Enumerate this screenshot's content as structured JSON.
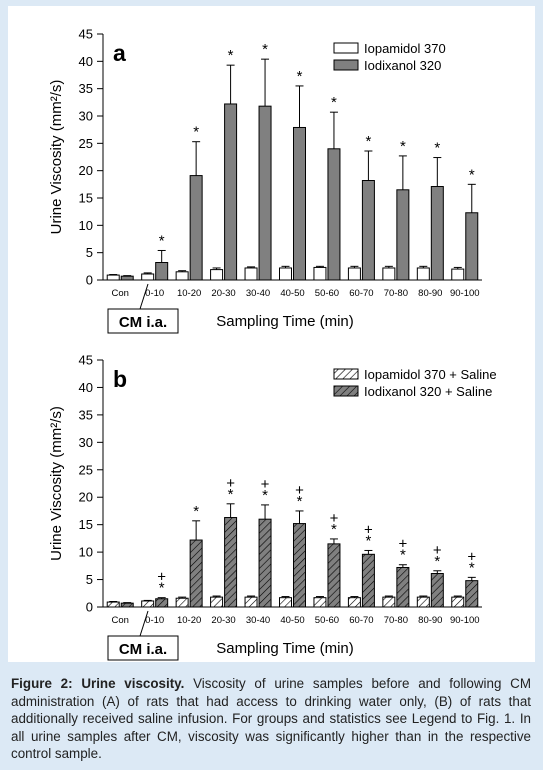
{
  "chart_data": [
    {
      "type": "bar",
      "panel": "a",
      "ylabel": "Urine Viscosity (mm²/s)",
      "xlabel": "Sampling Time (min)",
      "note": "CM i.a.",
      "categories": [
        "Con",
        "0-10",
        "10-20",
        "20-30",
        "30-40",
        "40-50",
        "50-60",
        "60-70",
        "70-80",
        "80-90",
        "90-100"
      ],
      "series": [
        {
          "name": "Iopamidol 370",
          "color": "#ffffff",
          "hatch": false,
          "values": [
            0.9,
            1.1,
            1.5,
            1.9,
            2.2,
            2.2,
            2.3,
            2.2,
            2.2,
            2.2,
            2.0
          ],
          "errors": [
            0.1,
            0.2,
            0.2,
            0.3,
            0.2,
            0.3,
            0.2,
            0.3,
            0.3,
            0.3,
            0.3
          ]
        },
        {
          "name": "Iodixanol 320",
          "color": "#808080",
          "hatch": false,
          "values": [
            0.7,
            3.2,
            19.1,
            32.2,
            31.8,
            27.9,
            24.0,
            18.2,
            16.5,
            17.1,
            12.3
          ],
          "errors": [
            0.1,
            2.2,
            6.2,
            7.1,
            8.6,
            7.6,
            6.7,
            5.4,
            6.2,
            5.3,
            5.2
          ]
        }
      ],
      "annotations": [
        null,
        [
          "*"
        ],
        [
          "*"
        ],
        [
          "*"
        ],
        [
          "*"
        ],
        [
          "*"
        ],
        [
          "*"
        ],
        [
          "*"
        ],
        [
          "*"
        ],
        [
          "*"
        ],
        [
          "*"
        ]
      ],
      "ylim": [
        0,
        45
      ],
      "yticks": [
        0,
        5,
        10,
        15,
        20,
        25,
        30,
        35,
        40,
        45
      ],
      "legend": "upper right"
    },
    {
      "type": "bar",
      "panel": "b",
      "ylabel": "Urine Viscosity (mm²/s)",
      "xlabel": "Sampling Time (min)",
      "note": "CM i.a.",
      "categories": [
        "Con",
        "0-10",
        "10-20",
        "20-30",
        "30-40",
        "40-50",
        "50-60",
        "60-70",
        "70-80",
        "80-90",
        "90-100"
      ],
      "series": [
        {
          "name": "Iopamidol 370 + Saline",
          "color": "#ffffff",
          "hatch": true,
          "values": [
            0.9,
            1.1,
            1.6,
            1.8,
            1.8,
            1.7,
            1.7,
            1.7,
            1.8,
            1.8,
            1.8
          ],
          "errors": [
            0.1,
            0.1,
            0.2,
            0.2,
            0.2,
            0.2,
            0.2,
            0.2,
            0.2,
            0.2,
            0.2
          ]
        },
        {
          "name": "Iodixanol 320 + Saline",
          "color": "#808080",
          "hatch": true,
          "values": [
            0.7,
            1.5,
            12.2,
            16.3,
            16.0,
            15.2,
            11.5,
            9.6,
            7.2,
            6.1,
            4.8
          ],
          "errors": [
            0.1,
            0.2,
            3.5,
            2.5,
            2.6,
            2.3,
            0.9,
            0.7,
            0.5,
            0.5,
            0.6
          ]
        }
      ],
      "annotations": [
        null,
        [
          "+",
          "*"
        ],
        [
          "*"
        ],
        [
          "+",
          "*"
        ],
        [
          "+",
          "*"
        ],
        [
          "+",
          "*"
        ],
        [
          "+",
          "*"
        ],
        [
          "+",
          "*"
        ],
        [
          "+",
          "*"
        ],
        [
          "+",
          "*"
        ],
        [
          "+",
          "*"
        ]
      ],
      "ylim": [
        0,
        45
      ],
      "yticks": [
        0,
        5,
        10,
        15,
        20,
        25,
        30,
        35,
        40,
        45
      ],
      "legend": "upper right"
    }
  ],
  "caption": {
    "label": "Figure 2: Urine viscosity.",
    "text": "Viscosity of urine samples before and following CM administration (A) of rats that had access to drinking water only, (B) of rats that additionally received saline infusion. For groups and statistics see Legend to Fig. 1. In all urine samples after CM, viscosity was significantly higher than in the respective control sample."
  }
}
